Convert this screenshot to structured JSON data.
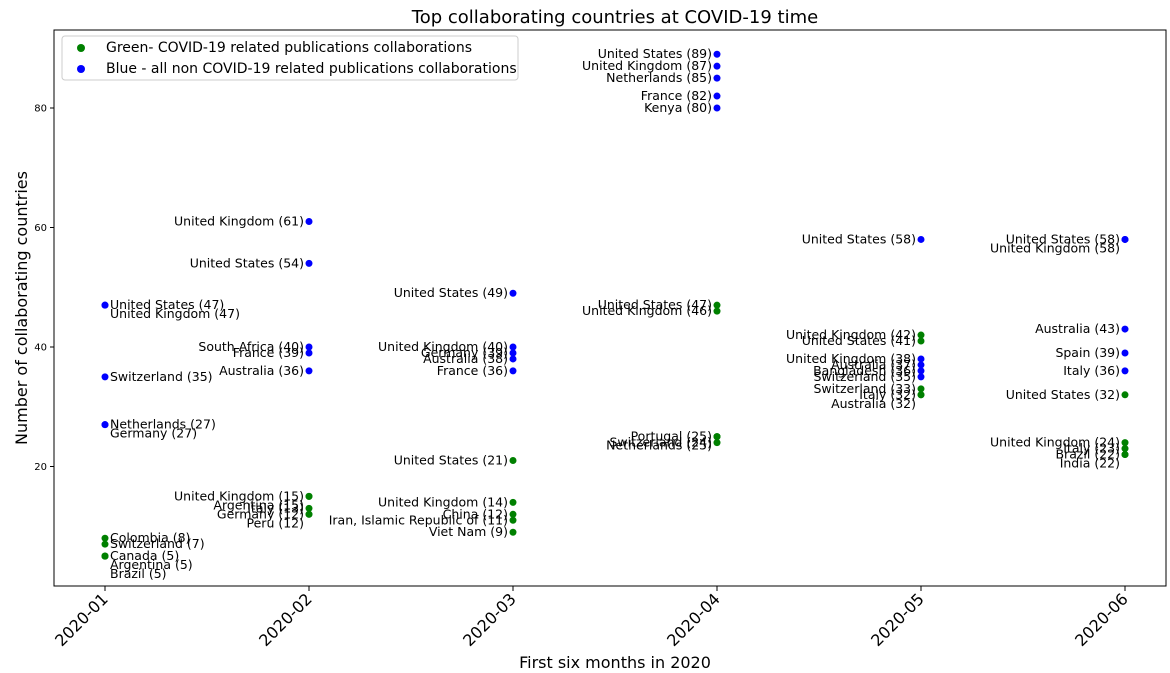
{
  "chart_data": {
    "type": "scatter",
    "title": "Top collaborating countries at COVID-19 time",
    "xlabel": "First six months in 2020",
    "ylabel": "Number of collaborating countries",
    "categories": [
      "2020-01",
      "2020-02",
      "2020-03",
      "2020-04",
      "2020-05",
      "2020-06"
    ],
    "ylim": [
      0,
      93
    ],
    "yticks": [
      20,
      40,
      60,
      80
    ],
    "grid": false,
    "legend_position": "top-left",
    "series": [
      {
        "name": "Green- COVID-19 related publications collaborations",
        "color": "#008000",
        "points": [
          {
            "x": "2020-01",
            "y": 8,
            "label": "Colombia (8)"
          },
          {
            "x": "2020-01",
            "y": 7,
            "label": "Switzerland (7)"
          },
          {
            "x": "2020-01",
            "y": 5,
            "label": "Canada (5)"
          },
          {
            "x": "2020-01",
            "y": 5,
            "label": "Argentina (5)"
          },
          {
            "x": "2020-01",
            "y": 5,
            "label": "Brazil (5)"
          },
          {
            "x": "2020-02",
            "y": 15,
            "label": "United Kingdom (15)"
          },
          {
            "x": "2020-02",
            "y": 15,
            "label": "Argentina (15)"
          },
          {
            "x": "2020-02",
            "y": 13,
            "label": "Italy (13)"
          },
          {
            "x": "2020-02",
            "y": 12,
            "label": "Germany (12)"
          },
          {
            "x": "2020-02",
            "y": 12,
            "label": "Peru (12)"
          },
          {
            "x": "2020-03",
            "y": 21,
            "label": "United States (21)"
          },
          {
            "x": "2020-03",
            "y": 14,
            "label": "United Kingdom (14)"
          },
          {
            "x": "2020-03",
            "y": 12,
            "label": "China (12)"
          },
          {
            "x": "2020-03",
            "y": 11,
            "label": "Iran, Islamic Republic of (11)"
          },
          {
            "x": "2020-03",
            "y": 9,
            "label": "Viet Nam (9)"
          },
          {
            "x": "2020-04",
            "y": 47,
            "label": "United States (47)"
          },
          {
            "x": "2020-04",
            "y": 46,
            "label": "United Kingdom (46)"
          },
          {
            "x": "2020-04",
            "y": 25,
            "label": "Portugal (25)"
          },
          {
            "x": "2020-04",
            "y": 25,
            "label": "Netherlands (25)"
          },
          {
            "x": "2020-04",
            "y": 24,
            "label": "Switzerland (24)"
          },
          {
            "x": "2020-05",
            "y": 42,
            "label": "United Kingdom (42)"
          },
          {
            "x": "2020-05",
            "y": 41,
            "label": "United States (41)"
          },
          {
            "x": "2020-05",
            "y": 33,
            "label": "Switzerland (33)"
          },
          {
            "x": "2020-05",
            "y": 32,
            "label": "Italy (32)"
          },
          {
            "x": "2020-05",
            "y": 32,
            "label": "Australia (32)"
          },
          {
            "x": "2020-06",
            "y": 32,
            "label": "United States (32)"
          },
          {
            "x": "2020-06",
            "y": 24,
            "label": "United Kingdom (24)"
          },
          {
            "x": "2020-06",
            "y": 23,
            "label": "Italy (23)"
          },
          {
            "x": "2020-06",
            "y": 22,
            "label": "Brazil (22)"
          },
          {
            "x": "2020-06",
            "y": 22,
            "label": "India (22)"
          }
        ]
      },
      {
        "name": "Blue - all non COVID-19 related publications collaborations",
        "color": "#0000ff",
        "points": [
          {
            "x": "2020-01",
            "y": 47,
            "label": "United States (47)"
          },
          {
            "x": "2020-01",
            "y": 47,
            "label": "United Kingdom (47)"
          },
          {
            "x": "2020-01",
            "y": 35,
            "label": "Switzerland (35)"
          },
          {
            "x": "2020-01",
            "y": 27,
            "label": "Netherlands (27)"
          },
          {
            "x": "2020-01",
            "y": 27,
            "label": "Germany (27)"
          },
          {
            "x": "2020-02",
            "y": 61,
            "label": "United Kingdom (61)"
          },
          {
            "x": "2020-02",
            "y": 54,
            "label": "United States (54)"
          },
          {
            "x": "2020-02",
            "y": 40,
            "label": "South Africa (40)"
          },
          {
            "x": "2020-02",
            "y": 39,
            "label": "France (39)"
          },
          {
            "x": "2020-02",
            "y": 36,
            "label": "Australia (36)"
          },
          {
            "x": "2020-03",
            "y": 49,
            "label": "United States (49)"
          },
          {
            "x": "2020-03",
            "y": 40,
            "label": "United Kingdom (40)"
          },
          {
            "x": "2020-03",
            "y": 39,
            "label": "Germany (39)"
          },
          {
            "x": "2020-03",
            "y": 38,
            "label": "Australia (38)"
          },
          {
            "x": "2020-03",
            "y": 36,
            "label": "France (36)"
          },
          {
            "x": "2020-04",
            "y": 89,
            "label": "United States (89)"
          },
          {
            "x": "2020-04",
            "y": 87,
            "label": "United Kingdom (87)"
          },
          {
            "x": "2020-04",
            "y": 85,
            "label": "Netherlands (85)"
          },
          {
            "x": "2020-04",
            "y": 82,
            "label": "France (82)"
          },
          {
            "x": "2020-04",
            "y": 80,
            "label": "Kenya (80)"
          },
          {
            "x": "2020-05",
            "y": 58,
            "label": "United States (58)"
          },
          {
            "x": "2020-05",
            "y": 38,
            "label": "United Kingdom (38)"
          },
          {
            "x": "2020-05",
            "y": 37,
            "label": "Australia (37)"
          },
          {
            "x": "2020-05",
            "y": 36,
            "label": "Bangladesh (36)"
          },
          {
            "x": "2020-05",
            "y": 35,
            "label": "Switzerland (35)"
          },
          {
            "x": "2020-06",
            "y": 58,
            "label": "United States (58)"
          },
          {
            "x": "2020-06",
            "y": 58,
            "label": "United Kingdom (58)"
          },
          {
            "x": "2020-06",
            "y": 43,
            "label": "Australia (43)"
          },
          {
            "x": "2020-06",
            "y": 39,
            "label": "Spain (39)"
          },
          {
            "x": "2020-06",
            "y": 36,
            "label": "Italy (36)"
          }
        ]
      }
    ]
  }
}
